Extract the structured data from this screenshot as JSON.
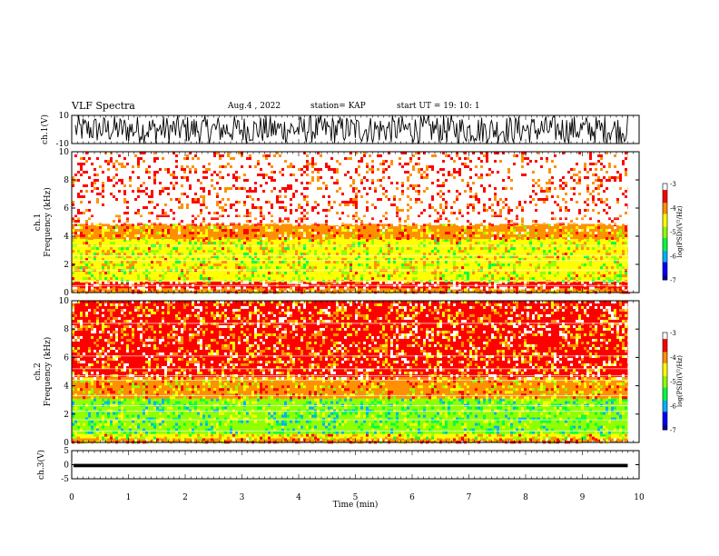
{
  "header": {
    "title": "VLF Spectra",
    "date": "Aug.4 , 2022",
    "station": "station= KAP",
    "start": "start UT = 19: 10: 1"
  },
  "chart_data": [
    {
      "type": "line",
      "panel": "ch.1 waveform",
      "ylabel": "ch.1(V)",
      "ylim": [
        -10,
        10
      ],
      "yticks": [
        "-10",
        "10"
      ],
      "x_range_min": [
        0,
        9.8
      ],
      "band_center_approx": 3.5,
      "band_range_approx": [
        -10,
        10
      ]
    },
    {
      "type": "heatmap",
      "panel": "ch.1 spectrogram",
      "ylabel": "ch.1 Frequency (kHz)",
      "ylim": [
        0,
        10
      ],
      "yticks": [
        "0",
        "2",
        "4",
        "6",
        "8",
        "10"
      ],
      "colorbar": {
        "label": "log(PSD)(V²/Hz)",
        "range": [
          -7,
          -3
        ],
        "ticks": [
          "-3",
          "-4",
          "-5",
          "-6",
          "-7"
        ]
      },
      "bands_khz": [
        {
          "range": [
            0,
            0.3
          ],
          "level": -3.9
        },
        {
          "range": [
            0.3,
            0.8
          ],
          "level": -3.3
        },
        {
          "range": [
            0.8,
            3.8
          ],
          "level": -4.6
        },
        {
          "range": [
            3.8,
            4.9
          ],
          "level": -4.0
        },
        {
          "range": [
            4.9,
            10
          ],
          "level": -3.2
        }
      ],
      "horizontal_lines_khz": [
        0.5,
        0.8,
        1.6,
        2.3,
        2.6,
        3.3,
        4.9,
        5.3,
        5.5
      ]
    },
    {
      "type": "heatmap",
      "panel": "ch.2 spectrogram",
      "ylabel": "ch.2 Frequency (kHz)",
      "ylim": [
        0,
        10
      ],
      "yticks": [
        "0",
        "2",
        "4",
        "6",
        "8",
        "10"
      ],
      "colorbar": {
        "label": "log(PSD)(V²/Hz)",
        "range": [
          -7,
          -3
        ],
        "ticks": [
          "-3",
          "-4",
          "-5",
          "-6",
          "-7"
        ]
      },
      "bands_khz": [
        {
          "range": [
            0,
            0.3
          ],
          "level": -3.9
        },
        {
          "range": [
            0.3,
            0.6
          ],
          "level": -4.5
        },
        {
          "range": [
            0.6,
            3.1
          ],
          "level": -5.2
        },
        {
          "range": [
            3.1,
            4.6
          ],
          "level": -4.2
        },
        {
          "range": [
            4.6,
            10
          ],
          "level": -3.7
        }
      ],
      "horizontal_lines_khz": [
        0.8,
        1.6,
        2.2,
        2.6,
        3.3,
        4.4,
        4.7,
        5.2,
        6.1,
        8.4
      ]
    },
    {
      "type": "line",
      "panel": "ch.3 waveform",
      "ylabel": "ch.3(V)",
      "ylim": [
        -5,
        5
      ],
      "yticks": [
        "-5",
        "0",
        "5"
      ],
      "x_range_min": [
        0,
        9.8
      ],
      "band_center_approx": -0.3,
      "band_range_approx": [
        -0.9,
        0.3
      ]
    }
  ],
  "xaxis": {
    "label": "Time (min)",
    "range": [
      0,
      10
    ],
    "ticks": [
      "0",
      "1",
      "2",
      "3",
      "4",
      "5",
      "6",
      "7",
      "8",
      "9",
      "10"
    ]
  },
  "colors": {
    "colormap": [
      "#0000a0",
      "#0000ff",
      "#00b0ff",
      "#00ff40",
      "#90ff00",
      "#ffff00",
      "#ff9000",
      "#ff0000",
      "#ffffff"
    ]
  }
}
